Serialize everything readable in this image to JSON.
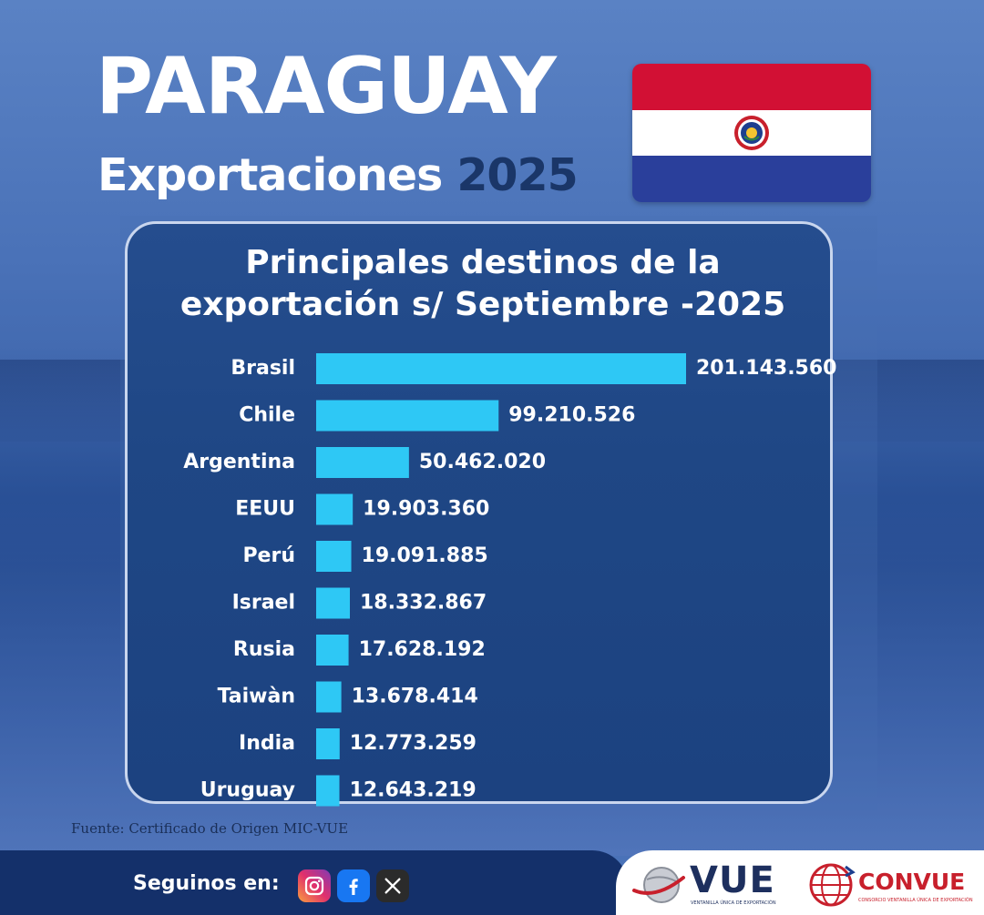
{
  "header": {
    "title": "PARAGUAY",
    "subtitle_prefix": "Exportaciones",
    "subtitle_year": "2025"
  },
  "flag": {
    "icon": "paraguay-flag-icon",
    "colors": [
      "#d21034",
      "#ffffff",
      "#2a3f9b"
    ]
  },
  "chart_data": {
    "type": "bar",
    "orientation": "horizontal",
    "title_lines": [
      "Principales destinos de la",
      "exportación s/ Septiembre -2025"
    ],
    "categories": [
      "Brasil",
      "Chile",
      "Argentina",
      "EEUU",
      "Perú",
      "Israel",
      "Rusia",
      "Taiwàn",
      "India",
      "Uruguay"
    ],
    "values": [
      201143560,
      99210526,
      50462020,
      19903360,
      19091885,
      18332867,
      17628192,
      13678414,
      12773259,
      12643219
    ],
    "value_labels": [
      "201.143.560",
      "99.210.526",
      "50.462.020",
      "19.903.360",
      "19.091.885",
      "18.332.867",
      "17.628.192",
      "13.678.414",
      "12.773.259",
      "12.643.219"
    ],
    "bar_color": "#2ec8f5",
    "xlabel": "",
    "ylabel": "",
    "grid": false,
    "legend": false
  },
  "source": "Fuente: Certificado de Origen MIC-VUE",
  "footer": {
    "follow_label": "Seguinos en:",
    "social_icons": [
      "instagram-icon",
      "facebook-icon",
      "x-icon"
    ],
    "vue_logo": "VUE",
    "vue_sub": "VENTANILLA ÚNICA DE EXPORTACIÓN",
    "convue_logo": "CONVUE",
    "convue_sub": "CONSORCIO VENTANILLA ÚNICA DE EXPORTACIÓN"
  }
}
